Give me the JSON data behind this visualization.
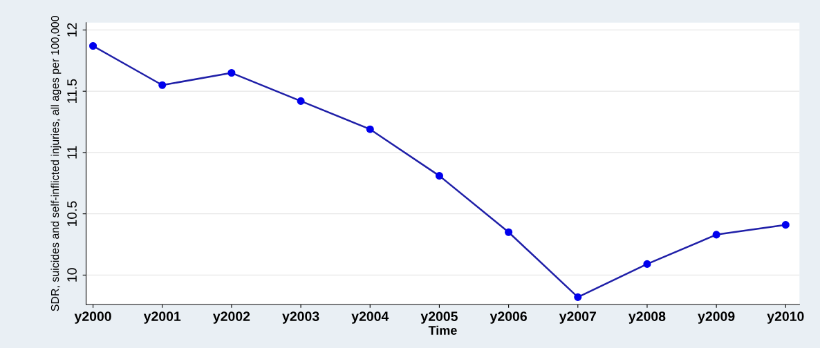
{
  "chart_data": {
    "type": "line",
    "xlabel": "Time",
    "ylabel": "SDR, suicides and self-inflicted injuries, all ages per 100,000",
    "categories": [
      "y2000",
      "y2001",
      "y2002",
      "y2003",
      "y2004",
      "y2005",
      "y2006",
      "y2007",
      "y2008",
      "y2009",
      "y2010"
    ],
    "series": [
      {
        "color": "#1f1fa8",
        "values": [
          11.87,
          11.55,
          11.65,
          11.42,
          11.19,
          10.81,
          10.35,
          9.82,
          10.09,
          10.33,
          10.41
        ]
      }
    ],
    "ylim": [
      9.76,
      12.06
    ],
    "yticks": [
      10,
      10.5,
      11,
      11.5,
      12
    ],
    "grid": "y",
    "marker": "circle",
    "line_style": "solid"
  }
}
